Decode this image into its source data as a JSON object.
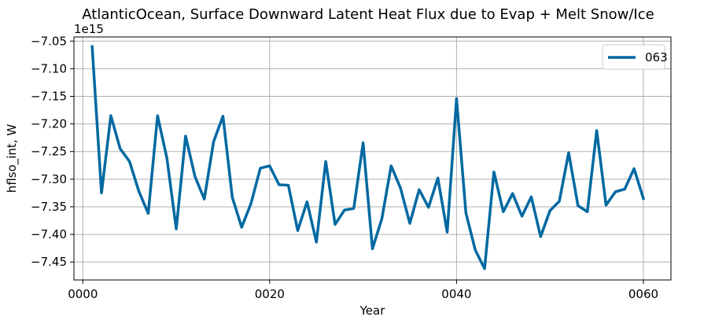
{
  "chart_data": {
    "type": "line",
    "title": "AtlanticOcean, Surface Downward Latent Heat Flux due to Evap + Melt Snow/Ice",
    "xlabel": "Year",
    "ylabel": "hflso_int, W",
    "offset_label": "1e15",
    "xlim": [
      -0.95,
      62.95
    ],
    "ylim": [
      -7.4825,
      -7.0425
    ],
    "x_ticks": [
      0,
      20,
      40,
      60
    ],
    "x_tick_labels": [
      "0000",
      "0020",
      "0040",
      "0060"
    ],
    "y_ticks": [
      -7.45,
      -7.4,
      -7.35,
      -7.3,
      -7.25,
      -7.2,
      -7.15,
      -7.1,
      -7.05
    ],
    "y_tick_labels": [
      "−7.45",
      "−7.40",
      "−7.35",
      "−7.30",
      "−7.25",
      "−7.20",
      "−7.15",
      "−7.10",
      "−7.05"
    ],
    "grid": true,
    "legend_position": "top-right",
    "series": [
      {
        "name": "063",
        "color": "#0069a1",
        "x": [
          1,
          2,
          3,
          4,
          5,
          6,
          7,
          8,
          9,
          10,
          11,
          12,
          13,
          14,
          15,
          16,
          17,
          18,
          19,
          20,
          21,
          22,
          23,
          24,
          25,
          26,
          27,
          28,
          29,
          30,
          31,
          32,
          33,
          34,
          35,
          36,
          37,
          38,
          39,
          40,
          41,
          42,
          43,
          44,
          45,
          46,
          47,
          48,
          49,
          50,
          51,
          52,
          53,
          54,
          55,
          56,
          57,
          58,
          59,
          60
        ],
        "values": [
          -7.06,
          -7.325,
          -7.185,
          -7.245,
          -7.268,
          -7.322,
          -7.362,
          -7.185,
          -7.262,
          -7.39,
          -7.222,
          -7.295,
          -7.336,
          -7.232,
          -7.186,
          -7.333,
          -7.387,
          -7.344,
          -7.28,
          -7.276,
          -7.31,
          -7.311,
          -7.393,
          -7.341,
          -7.414,
          -7.268,
          -7.382,
          -7.356,
          -7.353,
          -7.234,
          -7.426,
          -7.372,
          -7.276,
          -7.316,
          -7.38,
          -7.319,
          -7.351,
          -7.298,
          -7.396,
          -7.154,
          -7.361,
          -7.428,
          -7.462,
          -7.287,
          -7.359,
          -7.326,
          -7.367,
          -7.332,
          -7.404,
          -7.357,
          -7.34,
          -7.252,
          -7.348,
          -7.359,
          -7.212,
          -7.347,
          -7.323,
          -7.318,
          -7.281,
          -7.335
        ]
      }
    ]
  }
}
